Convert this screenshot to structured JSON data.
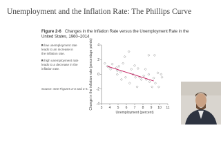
{
  "slide_title": "Unemployment and the Inflation Rate: The Phillips Curve",
  "figure_label": "Figure 2-6",
  "caption_lines": [
    "Changes in the Inflation Rate versus the Unemployment Rate in the",
    "United States, 1960–2014"
  ],
  "notes": [
    [
      "A low unemployment rate",
      "leads to an increase in",
      "the inflation rate."
    ],
    [
      "A high unemployment rate",
      "leads to a decrease in the",
      "inflation rate."
    ]
  ],
  "source": "Source: See Figures 2-3 and 2-4.",
  "chart_data": {
    "type": "scatter",
    "x_label": "Unemployment (percent)",
    "y_label": "Change in the inflation rate (percentage points)",
    "x": [
      3.4,
      3.7,
      3.9,
      4.1,
      4.3,
      4.8,
      4.9,
      5.1,
      5.3,
      5.6,
      5.8,
      6.3,
      6.6,
      6.8,
      7.0,
      7.1,
      7.4,
      7.6,
      7.8,
      8.1,
      8.3,
      8.4,
      8.7,
      8.8,
      9.1,
      9.3,
      9.5,
      9.8,
      9.9,
      10.2,
      10.3,
      6.4,
      5.9,
      7.3,
      8.7,
      9.4,
      4.9,
      5.4
    ],
    "values": [
      1.5,
      1.1,
      1.0,
      0.7,
      1.4,
      0.9,
      0.5,
      1.1,
      0.3,
      1.5,
      2.4,
      3.1,
      0.7,
      0.0,
      1.2,
      -0.4,
      0.8,
      -0.4,
      -0.7,
      -0.2,
      0.7,
      -0.7,
      0.0,
      -1.0,
      -1.7,
      -0.5,
      -1.2,
      0.2,
      -1.7,
      0.0,
      -0.4,
      -1.2,
      -0.4,
      -1.7,
      2.6,
      2.6,
      0.0,
      -0.7
    ],
    "color": "#8a8a8a",
    "fit_line": {
      "x": [
        3.7,
        9.3
      ],
      "values": [
        1.1,
        -0.9
      ],
      "color": "#c2185b"
    },
    "xlim": [
      3,
      11
    ],
    "xticks": [
      3,
      4,
      5,
      6,
      7,
      8,
      9,
      10,
      11
    ],
    "ylim": [
      -4,
      4
    ],
    "yticks": [
      -4,
      -2,
      0,
      2,
      4
    ]
  }
}
